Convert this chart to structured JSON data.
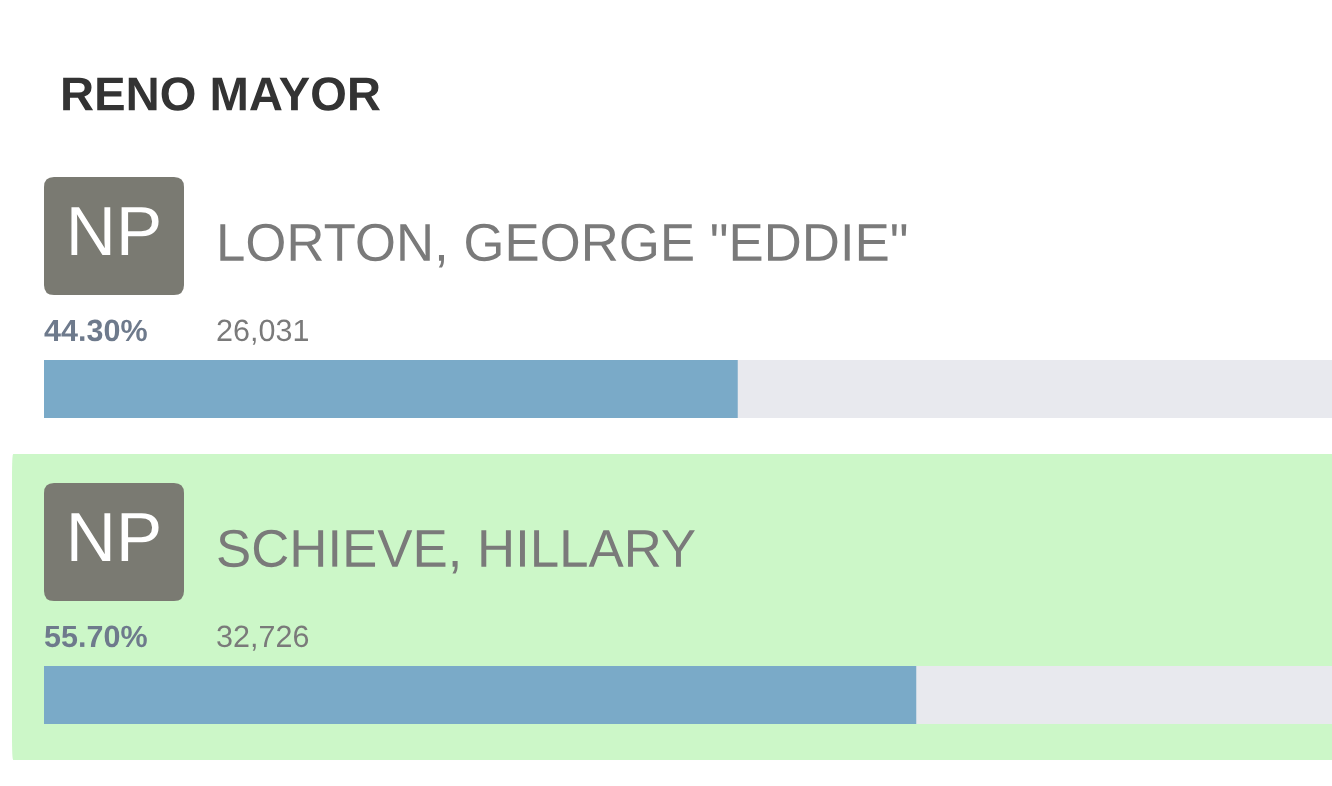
{
  "chart_data": {
    "type": "bar",
    "orientation": "horizontal",
    "title": "RENO MAYOR",
    "categories": [
      "LORTON, GEORGE \"EDDIE\"",
      "SCHIEVE, HILLARY"
    ],
    "values": [
      44.3,
      55.7
    ],
    "value_labels": [
      "44.30%",
      "55.70%"
    ],
    "color": "#7aaac8",
    "annotations": [
      "NP",
      "26,031",
      "NP",
      "32,726"
    ],
    "bands": [
      {
        "axis": "y",
        "from": "SCHIEVE, HILLARY",
        "to": "SCHIEVE, HILLARY",
        "color": "#ccf7c8"
      }
    ]
  }
}
